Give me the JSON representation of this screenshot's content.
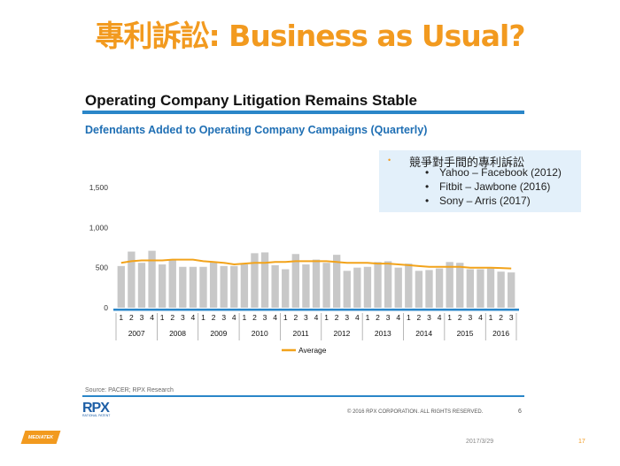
{
  "slide": {
    "title": "專利訴訟: Business as Usual?",
    "date": "2017/3/29",
    "number": "17",
    "brand": "MEDIATEK"
  },
  "callout": {
    "heading": "競爭對手間的專利訴訟",
    "bullet": "•",
    "items": [
      "Yahoo – Facebook (2012)",
      "Fitbit – Jawbone (2016)",
      "Sony – Arris (2017)"
    ]
  },
  "footer": {
    "source": "Source: PACER; RPX Research",
    "logo": "RPX",
    "logo_tagline": "RATIONAL PATENT",
    "copyright": "© 2016 RPX CORPORATION. ALL RIGHTS RESERVED.",
    "page": "6"
  },
  "chart_data": {
    "type": "bar",
    "title": "Operating Company Litigation Remains Stable",
    "subtitle": "Defendants Added to Operating Company Campaigns (Quarterly)",
    "years": [
      "2007",
      "2008",
      "2009",
      "2010",
      "2011",
      "2012",
      "2013",
      "2014",
      "2015",
      "2016"
    ],
    "quarter_labels": [
      "1",
      "2",
      "3",
      "4"
    ],
    "categories": [
      "2007 Q1",
      "2007 Q2",
      "2007 Q3",
      "2007 Q4",
      "2008 Q1",
      "2008 Q2",
      "2008 Q3",
      "2008 Q4",
      "2009 Q1",
      "2009 Q2",
      "2009 Q3",
      "2009 Q4",
      "2010 Q1",
      "2010 Q2",
      "2010 Q3",
      "2010 Q4",
      "2011 Q1",
      "2011 Q2",
      "2011 Q3",
      "2011 Q4",
      "2012 Q1",
      "2012 Q2",
      "2012 Q3",
      "2012 Q4",
      "2013 Q1",
      "2013 Q2",
      "2013 Q3",
      "2013 Q4",
      "2014 Q1",
      "2014 Q2",
      "2014 Q3",
      "2014 Q4",
      "2015 Q1",
      "2015 Q2",
      "2015 Q3",
      "2015 Q4",
      "2016 Q1",
      "2016 Q2",
      "2016 Q3"
    ],
    "series": [
      {
        "name": "Defendants Added",
        "values": [
          520,
          700,
          560,
          710,
          540,
          590,
          510,
          510,
          510,
          570,
          520,
          520,
          540,
          680,
          690,
          530,
          480,
          670,
          540,
          600,
          560,
          660,
          460,
          500,
          510,
          570,
          580,
          500,
          550,
          460,
          470,
          490,
          570,
          560,
          480,
          480,
          490,
          450,
          440
        ]
      },
      {
        "name": "Average",
        "values": [
          560,
          580,
          590,
          590,
          590,
          600,
          600,
          600,
          580,
          570,
          560,
          540,
          550,
          560,
          560,
          570,
          570,
          580,
          580,
          580,
          580,
          570,
          560,
          560,
          560,
          550,
          550,
          540,
          530,
          520,
          510,
          510,
          510,
          510,
          500,
          500,
          500,
          495,
          490
        ]
      }
    ],
    "ylim": [
      0,
      1500
    ],
    "yticks": [
      0,
      500,
      1000,
      1500
    ],
    "ytick_labels": [
      "0",
      "500",
      "1,000",
      "1,500"
    ],
    "legend": "bottom-center",
    "grid": false,
    "colors": {
      "bars": "#c8c8c8",
      "average": "#f2a31b",
      "axis_rule": "#2a86c8"
    }
  }
}
